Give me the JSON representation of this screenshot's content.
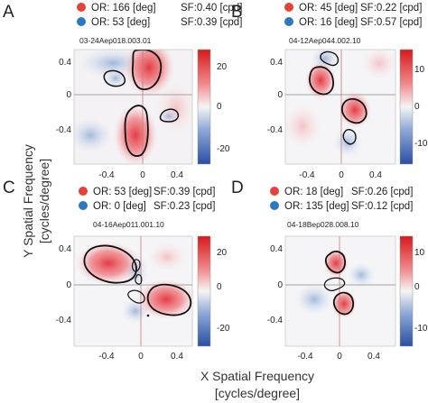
{
  "figure": {
    "y_axis_title_line1": "Y Spatial Frequency",
    "y_axis_title_line2": "[cycles/degree]",
    "x_axis_title_line1": "X Spatial Frequency",
    "x_axis_title_line2": "[cycles/degree]",
    "colors": {
      "positive": "#e3323c",
      "negative": "#2a5aa8",
      "legend_red": "#e8413a",
      "legend_blue": "#2c79bf",
      "contour": "#111111",
      "axis_line": "#888888"
    }
  },
  "panels": [
    {
      "letter": "A",
      "cell_id": "03-24Aep018.003.01",
      "legend": [
        {
          "marker": "red",
          "or": "OR: 166 [deg]",
          "sf": "SF:0.40 [cpd]"
        },
        {
          "marker": "blue",
          "or": "OR: 53 [deg]",
          "sf": "SF:0.39 [cpd]"
        }
      ],
      "xticks": [
        "-0.4",
        "0",
        "0.4"
      ],
      "yticks": [
        "0.4",
        "0",
        "-0.4"
      ],
      "colorbar": {
        "ticks": [
          "20",
          "0",
          "-20"
        ],
        "max": 30,
        "min": -25
      }
    },
    {
      "letter": "B",
      "cell_id": "04-12Aep044.002.10",
      "legend": [
        {
          "marker": "red",
          "or": "OR: 45 [deg]",
          "sf": "SF:0.22 [cpd]"
        },
        {
          "marker": "blue",
          "or": "OR: 16 [deg]",
          "sf": "SF:0.57 [cpd]"
        }
      ],
      "xticks": [
        "-0.4",
        "0",
        "0.4"
      ],
      "yticks": [
        "0.4",
        "0",
        "-0.4"
      ],
      "colorbar": {
        "ticks": [
          "10",
          "0",
          "-10"
        ],
        "max": 15,
        "min": -15
      }
    },
    {
      "letter": "C",
      "cell_id": "04-16Aep011.001.10",
      "legend": [
        {
          "marker": "red",
          "or": "OR: 53 [deg]",
          "sf": "SF:0.39 [cpd]"
        },
        {
          "marker": "blue",
          "or": "OR: 0 [deg]",
          "sf": "SF:0.23 [cpd]"
        }
      ],
      "xticks": [
        "-0.4",
        "0",
        "0.4"
      ],
      "yticks": [
        "0.4",
        "0",
        "-0.4"
      ],
      "colorbar": {
        "ticks": [
          "20",
          "0",
          "-20"
        ],
        "max": 30,
        "min": -25
      }
    },
    {
      "letter": "D",
      "cell_id": "04-18Bep028.008.10",
      "legend": [
        {
          "marker": "red",
          "or": "OR: 18 [deg]",
          "sf": "SF:0.26 [cpd]"
        },
        {
          "marker": "blue",
          "or": "OR: 135 [deg]",
          "sf": "SF:0.12 [cpd]"
        }
      ],
      "xticks": [
        "-0.4",
        "0",
        "0.4"
      ],
      "yticks": [
        "0.4",
        "0",
        "-0.4"
      ],
      "colorbar": {
        "ticks": [
          "10",
          "0",
          "-10"
        ],
        "max": 15,
        "min": -15
      }
    }
  ]
}
